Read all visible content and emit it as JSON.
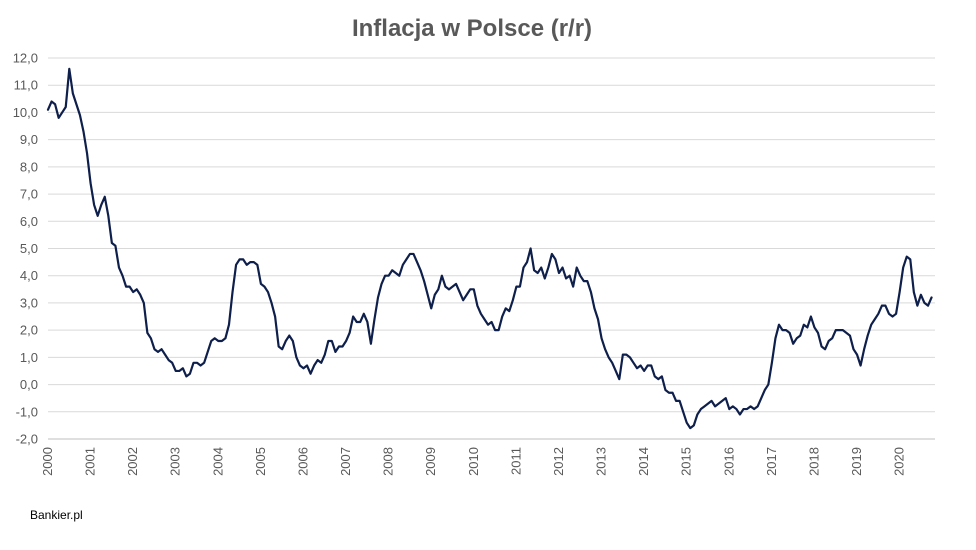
{
  "source_label": "Bankier.pl",
  "chart_data": {
    "type": "line",
    "title": "Inflacja w Polsce (r/r)",
    "xlabel": "",
    "ylabel": "",
    "ylim": [
      -2.0,
      12.0
    ],
    "y_ticks": [
      "12,0",
      "11,0",
      "10,0",
      "9,0",
      "8,0",
      "7,0",
      "6,0",
      "5,0",
      "4,0",
      "3,0",
      "2,0",
      "1,0",
      "0,0",
      "-1,0",
      "-2,0"
    ],
    "y_tick_values": [
      12,
      11,
      10,
      9,
      8,
      7,
      6,
      5,
      4,
      3,
      2,
      1,
      0,
      -1,
      -2
    ],
    "x_ticks": [
      "2000",
      "2001",
      "2002",
      "2003",
      "2004",
      "2005",
      "2006",
      "2007",
      "2008",
      "2009",
      "2010",
      "2011",
      "2012",
      "2013",
      "2014",
      "2015",
      "2016",
      "2017",
      "2018",
      "2019",
      "2020"
    ],
    "x_start": 2000,
    "x_end": 2020.83,
    "grid": true,
    "legend": "none",
    "color": "#0f1f4b",
    "series": [
      {
        "x_start": 2000,
        "step": 0.08333,
        "values": [
          10.1,
          10.4,
          10.3,
          9.8,
          10.0,
          10.2,
          11.6,
          10.7,
          10.3,
          9.9,
          9.3,
          8.5,
          7.4,
          6.6,
          6.2,
          6.6,
          6.9,
          6.2,
          5.2,
          5.1,
          4.3,
          4.0,
          3.6,
          3.6,
          3.4,
          3.5,
          3.3,
          3.0,
          1.9,
          1.7,
          1.3,
          1.2,
          1.3,
          1.1,
          0.9,
          0.8,
          0.5,
          0.5,
          0.6,
          0.3,
          0.4,
          0.8,
          0.8,
          0.7,
          0.8,
          1.2,
          1.6,
          1.7,
          1.6,
          1.6,
          1.7,
          2.2,
          3.4,
          4.4,
          4.6,
          4.6,
          4.4,
          4.5,
          4.5,
          4.4,
          3.7,
          3.6,
          3.4,
          3.0,
          2.5,
          1.4,
          1.3,
          1.6,
          1.8,
          1.6,
          1.0,
          0.7,
          0.6,
          0.7,
          0.4,
          0.7,
          0.9,
          0.8,
          1.1,
          1.6,
          1.6,
          1.2,
          1.4,
          1.4,
          1.6,
          1.9,
          2.5,
          2.3,
          2.3,
          2.6,
          2.3,
          1.5,
          2.4,
          3.2,
          3.7,
          4.0,
          4.0,
          4.2,
          4.1,
          4.0,
          4.4,
          4.6,
          4.8,
          4.8,
          4.5,
          4.2,
          3.8,
          3.3,
          2.8,
          3.3,
          3.5,
          4.0,
          3.6,
          3.5,
          3.6,
          3.7,
          3.4,
          3.1,
          3.3,
          3.5,
          3.5,
          2.9,
          2.6,
          2.4,
          2.2,
          2.3,
          2.0,
          2.0,
          2.5,
          2.8,
          2.7,
          3.1,
          3.6,
          3.6,
          4.3,
          4.5,
          5.0,
          4.2,
          4.1,
          4.3,
          3.9,
          4.3,
          4.8,
          4.6,
          4.1,
          4.3,
          3.9,
          4.0,
          3.6,
          4.3,
          4.0,
          3.8,
          3.8,
          3.4,
          2.8,
          2.4,
          1.7,
          1.3,
          1.0,
          0.8,
          0.5,
          0.2,
          1.1,
          1.1,
          1.0,
          0.8,
          0.6,
          0.7,
          0.5,
          0.7,
          0.7,
          0.3,
          0.2,
          0.3,
          -0.2,
          -0.3,
          -0.3,
          -0.6,
          -0.6,
          -1.0,
          -1.4,
          -1.6,
          -1.5,
          -1.1,
          -0.9,
          -0.8,
          -0.7,
          -0.6,
          -0.8,
          -0.7,
          -0.6,
          -0.5,
          -0.9,
          -0.8,
          -0.9,
          -1.1,
          -0.9,
          -0.9,
          -0.8,
          -0.9,
          -0.8,
          -0.5,
          -0.2,
          0.0,
          0.8,
          1.7,
          2.2,
          2.0,
          2.0,
          1.9,
          1.5,
          1.7,
          1.8,
          2.2,
          2.1,
          2.5,
          2.1,
          1.9,
          1.4,
          1.3,
          1.6,
          1.7,
          2.0,
          2.0,
          2.0,
          1.9,
          1.8,
          1.3,
          1.1,
          0.7,
          1.3,
          1.8,
          2.2,
          2.4,
          2.6,
          2.9,
          2.9,
          2.6,
          2.5,
          2.6,
          3.4,
          4.3,
          4.7,
          4.6,
          3.4,
          2.9,
          3.3,
          3.0,
          2.9,
          3.2
        ]
      }
    ]
  }
}
